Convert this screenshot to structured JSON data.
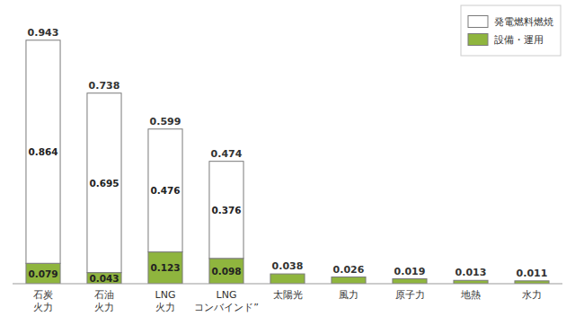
{
  "chart_data": {
    "type": "bar",
    "stacked": true,
    "categories": [
      "石炭\n火力",
      "石油\n火力",
      "LNG\n火力",
      "LNG\nコンバインド”",
      "太陽光",
      "風力",
      "原子力",
      "地熱",
      "水力"
    ],
    "series": [
      {
        "name": "発電燃料燃焼",
        "color": "#ffffff",
        "values": [
          0.864,
          0.695,
          0.476,
          0.376,
          0.0,
          0.0,
          0.0,
          0.0,
          0.0
        ],
        "value_labels": [
          "0.864",
          "0.695",
          "0.476",
          "0.376",
          null,
          null,
          null,
          null,
          null
        ]
      },
      {
        "name": "設備・運用",
        "color": "#8fb53e",
        "values": [
          0.079,
          0.043,
          0.123,
          0.098,
          0.038,
          0.026,
          0.019,
          0.013,
          0.011
        ],
        "value_labels": [
          "0.079",
          "0.043",
          "0.123",
          "0.098",
          null,
          null,
          null,
          null,
          null
        ]
      }
    ],
    "totals": [
      0.943,
      0.738,
      0.599,
      0.474,
      0.038,
      0.026,
      0.019,
      0.013,
      0.011
    ],
    "ylim": [
      0,
      1.05
    ],
    "data_labels": true,
    "tick_labels": "x",
    "grid": false,
    "legend": "upper right"
  }
}
